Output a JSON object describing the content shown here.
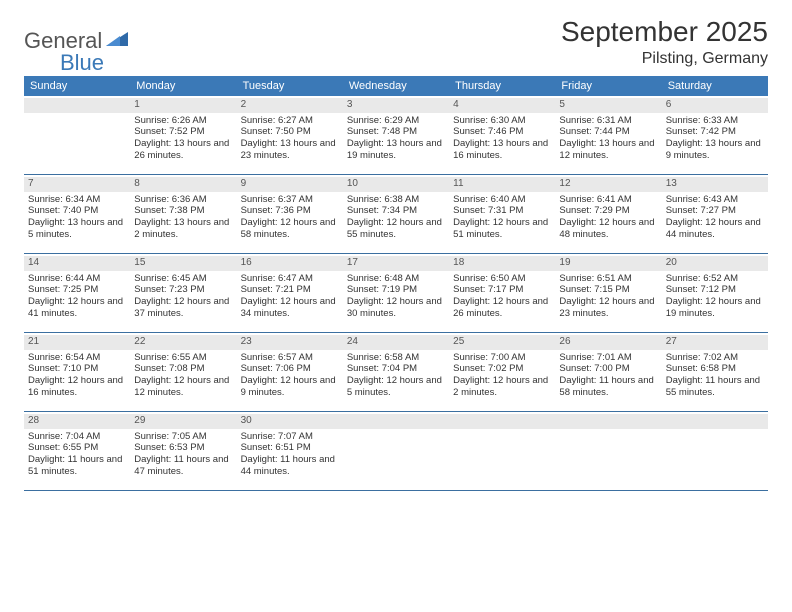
{
  "logo": {
    "part1": "General",
    "part2": "Blue"
  },
  "title": "September 2025",
  "location": "Pilsting, Germany",
  "colors": {
    "header_bg": "#3b79b7",
    "header_text": "#ffffff",
    "daynum_bg": "#e9e9e9",
    "rule": "#3b6fa0",
    "text": "#333333",
    "logo_gray": "#555555",
    "logo_blue": "#3b79b7",
    "page_bg": "#ffffff"
  },
  "day_names": [
    "Sunday",
    "Monday",
    "Tuesday",
    "Wednesday",
    "Thursday",
    "Friday",
    "Saturday"
  ],
  "weeks": [
    [
      {
        "n": "",
        "sunrise": "",
        "sunset": "",
        "daylight": ""
      },
      {
        "n": "1",
        "sunrise": "Sunrise: 6:26 AM",
        "sunset": "Sunset: 7:52 PM",
        "daylight": "Daylight: 13 hours and 26 minutes."
      },
      {
        "n": "2",
        "sunrise": "Sunrise: 6:27 AM",
        "sunset": "Sunset: 7:50 PM",
        "daylight": "Daylight: 13 hours and 23 minutes."
      },
      {
        "n": "3",
        "sunrise": "Sunrise: 6:29 AM",
        "sunset": "Sunset: 7:48 PM",
        "daylight": "Daylight: 13 hours and 19 minutes."
      },
      {
        "n": "4",
        "sunrise": "Sunrise: 6:30 AM",
        "sunset": "Sunset: 7:46 PM",
        "daylight": "Daylight: 13 hours and 16 minutes."
      },
      {
        "n": "5",
        "sunrise": "Sunrise: 6:31 AM",
        "sunset": "Sunset: 7:44 PM",
        "daylight": "Daylight: 13 hours and 12 minutes."
      },
      {
        "n": "6",
        "sunrise": "Sunrise: 6:33 AM",
        "sunset": "Sunset: 7:42 PM",
        "daylight": "Daylight: 13 hours and 9 minutes."
      }
    ],
    [
      {
        "n": "7",
        "sunrise": "Sunrise: 6:34 AM",
        "sunset": "Sunset: 7:40 PM",
        "daylight": "Daylight: 13 hours and 5 minutes."
      },
      {
        "n": "8",
        "sunrise": "Sunrise: 6:36 AM",
        "sunset": "Sunset: 7:38 PM",
        "daylight": "Daylight: 13 hours and 2 minutes."
      },
      {
        "n": "9",
        "sunrise": "Sunrise: 6:37 AM",
        "sunset": "Sunset: 7:36 PM",
        "daylight": "Daylight: 12 hours and 58 minutes."
      },
      {
        "n": "10",
        "sunrise": "Sunrise: 6:38 AM",
        "sunset": "Sunset: 7:34 PM",
        "daylight": "Daylight: 12 hours and 55 minutes."
      },
      {
        "n": "11",
        "sunrise": "Sunrise: 6:40 AM",
        "sunset": "Sunset: 7:31 PM",
        "daylight": "Daylight: 12 hours and 51 minutes."
      },
      {
        "n": "12",
        "sunrise": "Sunrise: 6:41 AM",
        "sunset": "Sunset: 7:29 PM",
        "daylight": "Daylight: 12 hours and 48 minutes."
      },
      {
        "n": "13",
        "sunrise": "Sunrise: 6:43 AM",
        "sunset": "Sunset: 7:27 PM",
        "daylight": "Daylight: 12 hours and 44 minutes."
      }
    ],
    [
      {
        "n": "14",
        "sunrise": "Sunrise: 6:44 AM",
        "sunset": "Sunset: 7:25 PM",
        "daylight": "Daylight: 12 hours and 41 minutes."
      },
      {
        "n": "15",
        "sunrise": "Sunrise: 6:45 AM",
        "sunset": "Sunset: 7:23 PM",
        "daylight": "Daylight: 12 hours and 37 minutes."
      },
      {
        "n": "16",
        "sunrise": "Sunrise: 6:47 AM",
        "sunset": "Sunset: 7:21 PM",
        "daylight": "Daylight: 12 hours and 34 minutes."
      },
      {
        "n": "17",
        "sunrise": "Sunrise: 6:48 AM",
        "sunset": "Sunset: 7:19 PM",
        "daylight": "Daylight: 12 hours and 30 minutes."
      },
      {
        "n": "18",
        "sunrise": "Sunrise: 6:50 AM",
        "sunset": "Sunset: 7:17 PM",
        "daylight": "Daylight: 12 hours and 26 minutes."
      },
      {
        "n": "19",
        "sunrise": "Sunrise: 6:51 AM",
        "sunset": "Sunset: 7:15 PM",
        "daylight": "Daylight: 12 hours and 23 minutes."
      },
      {
        "n": "20",
        "sunrise": "Sunrise: 6:52 AM",
        "sunset": "Sunset: 7:12 PM",
        "daylight": "Daylight: 12 hours and 19 minutes."
      }
    ],
    [
      {
        "n": "21",
        "sunrise": "Sunrise: 6:54 AM",
        "sunset": "Sunset: 7:10 PM",
        "daylight": "Daylight: 12 hours and 16 minutes."
      },
      {
        "n": "22",
        "sunrise": "Sunrise: 6:55 AM",
        "sunset": "Sunset: 7:08 PM",
        "daylight": "Daylight: 12 hours and 12 minutes."
      },
      {
        "n": "23",
        "sunrise": "Sunrise: 6:57 AM",
        "sunset": "Sunset: 7:06 PM",
        "daylight": "Daylight: 12 hours and 9 minutes."
      },
      {
        "n": "24",
        "sunrise": "Sunrise: 6:58 AM",
        "sunset": "Sunset: 7:04 PM",
        "daylight": "Daylight: 12 hours and 5 minutes."
      },
      {
        "n": "25",
        "sunrise": "Sunrise: 7:00 AM",
        "sunset": "Sunset: 7:02 PM",
        "daylight": "Daylight: 12 hours and 2 minutes."
      },
      {
        "n": "26",
        "sunrise": "Sunrise: 7:01 AM",
        "sunset": "Sunset: 7:00 PM",
        "daylight": "Daylight: 11 hours and 58 minutes."
      },
      {
        "n": "27",
        "sunrise": "Sunrise: 7:02 AM",
        "sunset": "Sunset: 6:58 PM",
        "daylight": "Daylight: 11 hours and 55 minutes."
      }
    ],
    [
      {
        "n": "28",
        "sunrise": "Sunrise: 7:04 AM",
        "sunset": "Sunset: 6:55 PM",
        "daylight": "Daylight: 11 hours and 51 minutes."
      },
      {
        "n": "29",
        "sunrise": "Sunrise: 7:05 AM",
        "sunset": "Sunset: 6:53 PM",
        "daylight": "Daylight: 11 hours and 47 minutes."
      },
      {
        "n": "30",
        "sunrise": "Sunrise: 7:07 AM",
        "sunset": "Sunset: 6:51 PM",
        "daylight": "Daylight: 11 hours and 44 minutes."
      },
      {
        "n": "",
        "sunrise": "",
        "sunset": "",
        "daylight": ""
      },
      {
        "n": "",
        "sunrise": "",
        "sunset": "",
        "daylight": ""
      },
      {
        "n": "",
        "sunrise": "",
        "sunset": "",
        "daylight": ""
      },
      {
        "n": "",
        "sunrise": "",
        "sunset": "",
        "daylight": ""
      }
    ]
  ]
}
